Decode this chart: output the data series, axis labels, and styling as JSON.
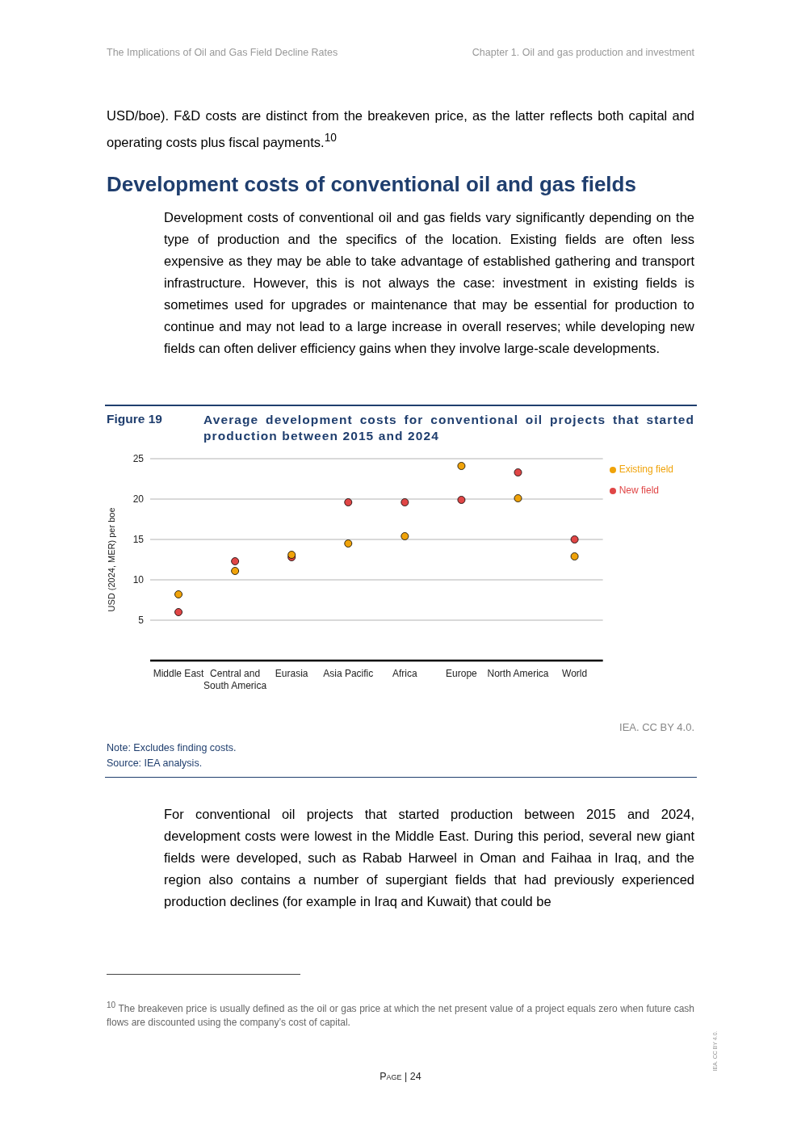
{
  "chart_data": {
    "type": "scatter",
    "title": "Average development costs for conventional oil projects that started production between 2015 and 2024",
    "ylabel": "USD (2024, MER) per boe",
    "categories": [
      "Middle East",
      "Central and South America",
      "Eurasia",
      "Asia Pacific",
      "Africa",
      "Europe",
      "North America",
      "World"
    ],
    "series": [
      {
        "name": "New field",
        "color": "#e04646",
        "values": [
          6.0,
          12.3,
          12.8,
          19.6,
          19.6,
          19.9,
          23.3,
          15.0
        ]
      },
      {
        "name": "Existing field",
        "color": "#f0a30a",
        "values": [
          8.2,
          11.1,
          13.1,
          14.5,
          15.4,
          24.1,
          20.1,
          12.9
        ]
      }
    ],
    "ylim": [
      0,
      25
    ],
    "yticks": [
      5,
      10,
      15,
      20,
      25
    ],
    "grid": "y",
    "legend": "top right",
    "marker": "circle",
    "annotations": [
      "The Implications of Oil and Gas Field Decline Rates",
      "Chapter 1. Oil and gas production and investment",
      "USD/boe). F&D costs are distinct from the breakeven price, as the latter reflects both capital and operating costs plus fiscal payments.$^{10}$",
      "Development costs of conventional oil and gas fields",
      "Development costs of conventional oil and gas fields vary significantly depending on the type of production and the specifics of the location. Existing fields are often less expensive as they may be able to take advantage of established gathering and transport infrastructure. However, this is not always the case: investment in existing fields is sometimes used for upgrades or maintenance that may be essential for production to continue and may not lead to a large increase in overall reserves; while developing new fields can often deliver efficiency gains when they involve large-scale developments.",
      "Figure 19",
      "IEA. CC BY 4.0.",
      "Note: Excludes finding costs.",
      "Source: IEA analysis.",
      "For conventional oil projects that started production between 2015 and 2024, development costs were lowest in the Middle East. During this period, several new giant fields were developed, such as Rabab Harweel in Oman and Faihaa in Iraq, and the region also contains a number of supergiant fields that had previously experienced production declines (for example in Iraq and Kuwait) that could be",
      "$^{10}$ The breakeven price is usually defined as the oil or gas price at which the net present value of a project equals zero when future cash flows are discounted using the company’s cost of capital.",
      "Page | 24",
      "IEA. CC BY 4.0."
    ]
  }
}
